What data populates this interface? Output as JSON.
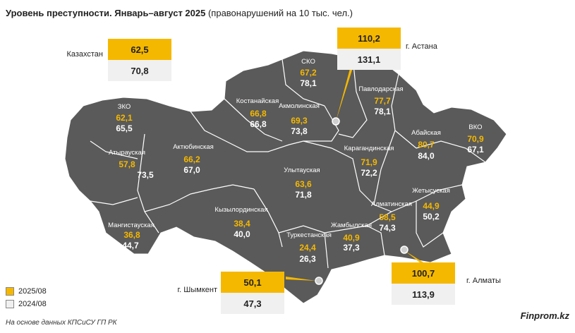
{
  "title_bold": "Уровень преступности. Январь–август 2025",
  "title_rest": " (правонарушений на 10 тыс. чел.)",
  "legend": [
    {
      "label": "2025/08",
      "color": "#f5b800"
    },
    {
      "label": "2024/08",
      "color": "#f0f0f0"
    }
  ],
  "source": "На основе данных КПСиСУ ГП РК",
  "brand": "Finprom.kz",
  "colors": {
    "map_fill": "#5a5a5a",
    "border": "#ffffff",
    "highlight": "#f5b800",
    "box_grey": "#f0f0f0"
  },
  "country": {
    "name": "Казахстан",
    "v2025": "62,5",
    "v2024": "70,8"
  },
  "regions": [
    {
      "name": "ЗКО",
      "v2025": "62,1",
      "v2024": "65,5"
    },
    {
      "name": "Атырауская",
      "v2025": "57,8",
      "v2024": "73,5"
    },
    {
      "name": "Актюбинская",
      "v2025": "66,2",
      "v2024": "67,0"
    },
    {
      "name": "Мангистауская",
      "v2025": "36,8",
      "v2024": "44,7"
    },
    {
      "name": "Костанайская",
      "v2025": "66,8",
      "v2024": "66,8"
    },
    {
      "name": "СКО",
      "v2025": "67,2",
      "v2024": "78,1"
    },
    {
      "name": "Акмолинская",
      "v2025": "69,3",
      "v2024": "73,8"
    },
    {
      "name": "Павлодарская",
      "v2025": "77,7",
      "v2024": "78,1"
    },
    {
      "name": "Абайская",
      "v2025": "80,7",
      "v2024": "84,0"
    },
    {
      "name": "ВКО",
      "v2025": "70,9",
      "v2024": "67,1"
    },
    {
      "name": "Карагандинская",
      "v2025": "71,9",
      "v2024": "72,2"
    },
    {
      "name": "Улытауская",
      "v2025": "63,6",
      "v2024": "71,8"
    },
    {
      "name": "Кызылординская",
      "v2025": "38,4",
      "v2024": "40,0"
    },
    {
      "name": "Туркестанская",
      "v2025": "24,4",
      "v2024": "26,3"
    },
    {
      "name": "Жамбылская",
      "v2025": "40,9",
      "v2024": "37,3"
    },
    {
      "name": "Алматинская",
      "v2025": "58,5",
      "v2024": "74,3"
    },
    {
      "name": "Жетысуская",
      "v2025": "44,9",
      "v2024": "50,2"
    }
  ],
  "cities": [
    {
      "name": "г. Астана",
      "v2025": "110,2",
      "v2024": "131,1"
    },
    {
      "name": "г. Алматы",
      "v2025": "100,7",
      "v2024": "113,9"
    },
    {
      "name": "г. Шымкент",
      "v2025": "50,1",
      "v2024": "47,3"
    }
  ]
}
